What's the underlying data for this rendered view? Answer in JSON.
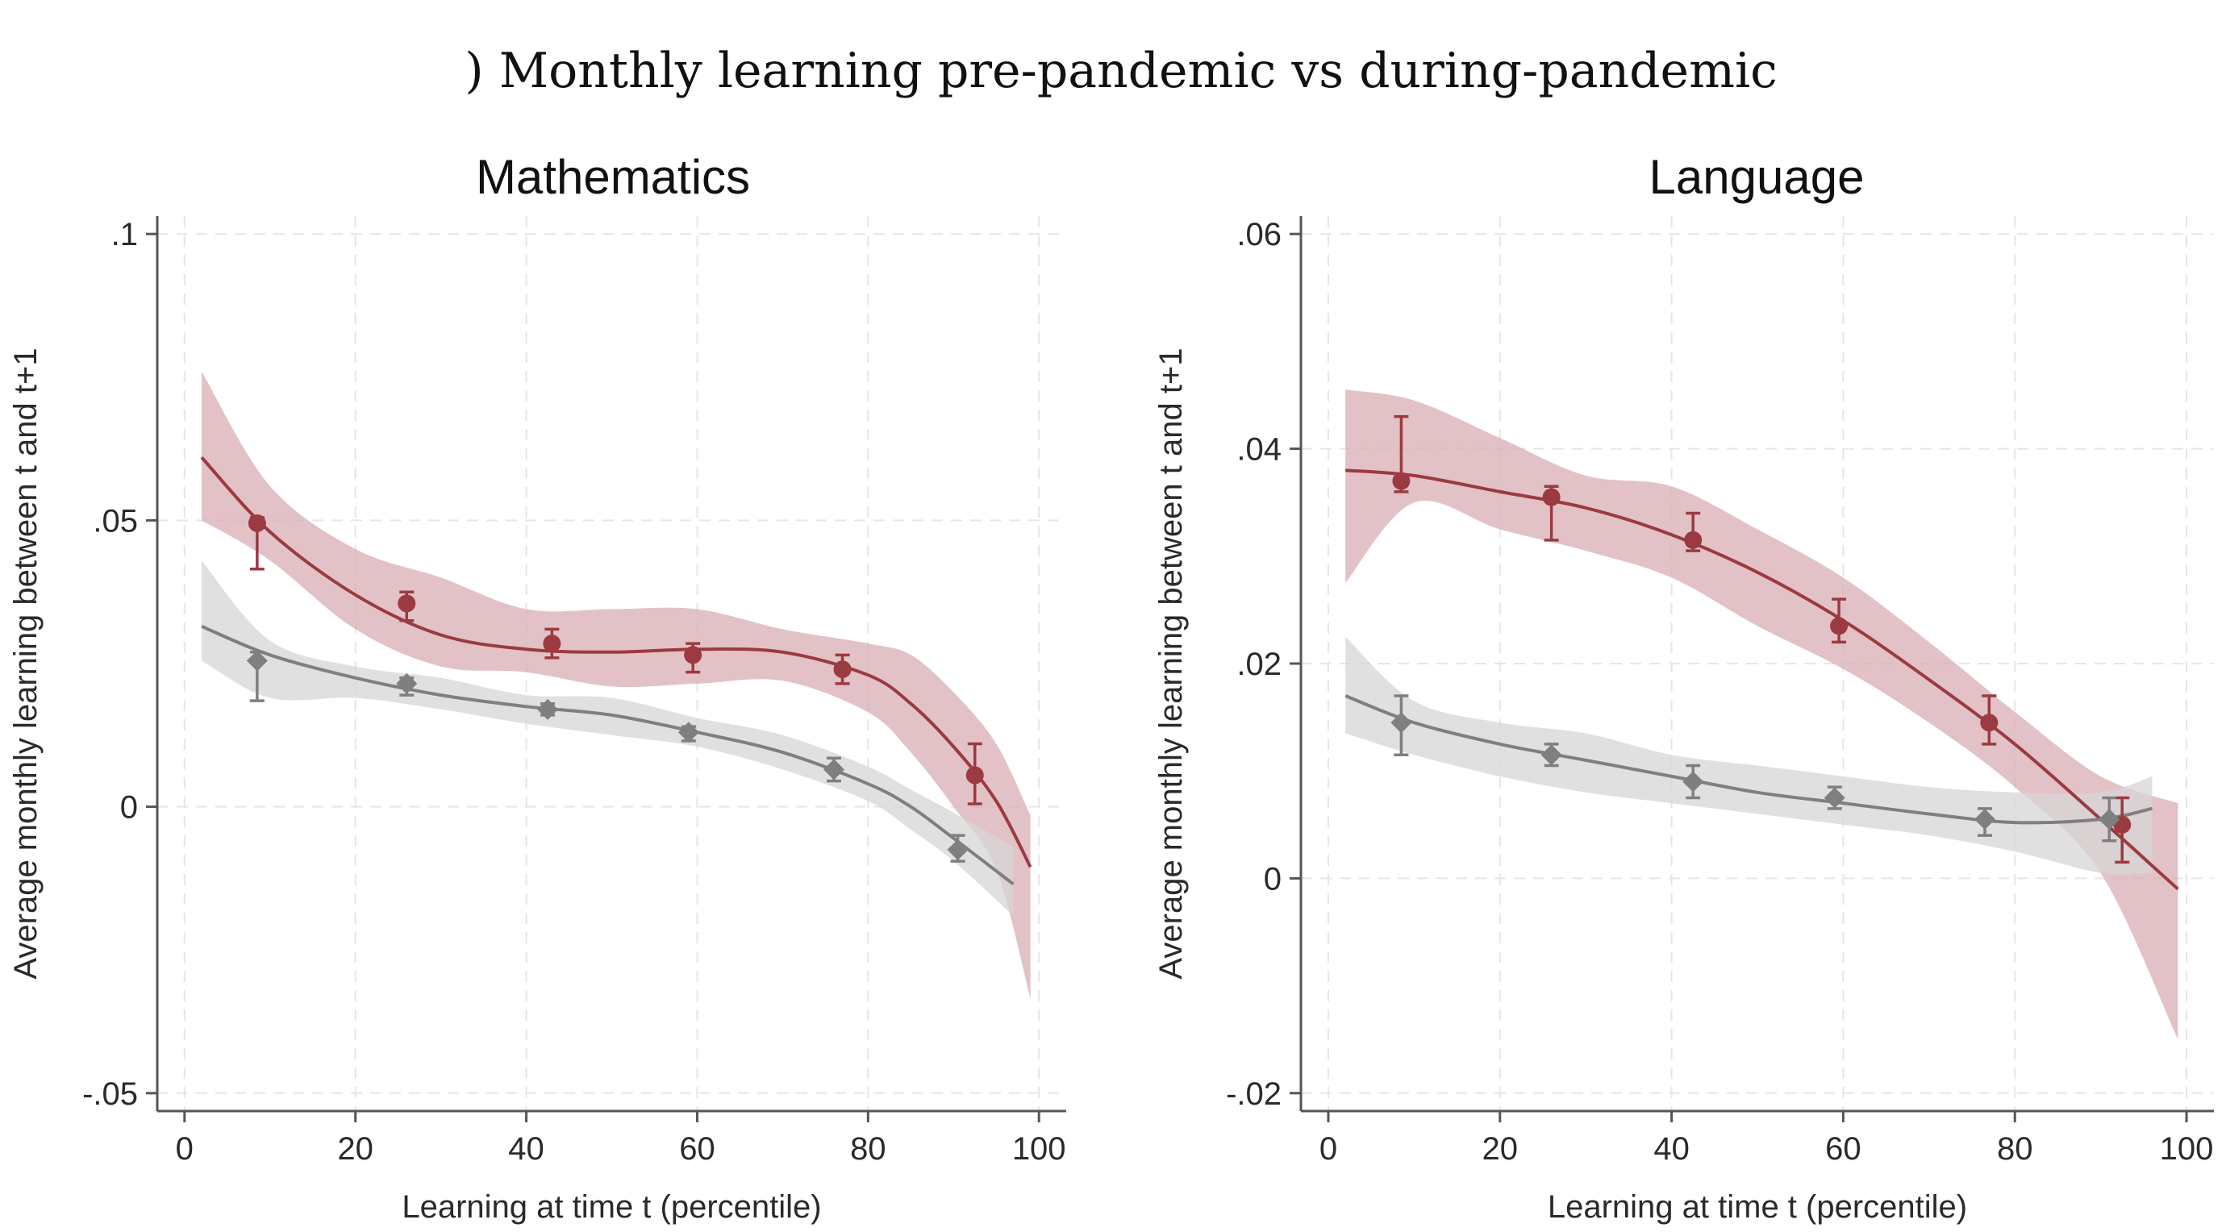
{
  "figure": {
    "suptitle": ") Monthly learning pre-pandemic vs during-pandemic"
  },
  "colors": {
    "pandemic_line": "#9b3a40",
    "pandemic_band": "#d8aeb3",
    "prepandemic_line": "#7f7f7f",
    "prepandemic_band": "#d6d6d6"
  },
  "chart_data": [
    {
      "type": "line",
      "title": "Mathematics",
      "xlabel": "Learning at time t (percentile)",
      "ylabel": "Average monthly learning between t and t+1",
      "xlim": [
        0,
        100
      ],
      "ylim": [
        -0.05,
        0.1
      ],
      "xticks": [
        0,
        20,
        40,
        60,
        80,
        100
      ],
      "xtick_labels": [
        "0",
        "20",
        "40",
        "60",
        "80",
        "100"
      ],
      "yticks": [
        -0.05,
        0,
        0.05,
        0.1
      ],
      "ytick_labels": [
        "-.05",
        "0",
        ".05",
        ".1"
      ],
      "grid": true,
      "series": [
        {
          "name": "During pandemic",
          "color_key": "pandemic_line",
          "band_color_key": "pandemic_band",
          "marker": "circle",
          "fit_x": [
            2,
            10,
            20,
            30,
            40,
            50,
            60,
            70,
            80,
            85,
            90,
            95,
            99
          ],
          "fit_y": [
            0.061,
            0.048,
            0.037,
            0.03,
            0.0275,
            0.027,
            0.0275,
            0.027,
            0.023,
            0.018,
            0.0105,
            0.001,
            -0.0105
          ],
          "band_upper": [
            0.076,
            0.056,
            0.045,
            0.04,
            0.0345,
            0.0345,
            0.0345,
            0.031,
            0.0285,
            0.0265,
            0.02,
            0.011,
            -0.0015
          ],
          "band_lower": [
            0.05,
            0.043,
            0.031,
            0.0245,
            0.0235,
            0.021,
            0.0215,
            0.022,
            0.0165,
            0.0095,
            0.0,
            -0.011,
            -0.0335
          ],
          "points_x": [
            8.5,
            26,
            43,
            59.5,
            77,
            92.5
          ],
          "points_y": [
            0.0495,
            0.0355,
            0.0285,
            0.0265,
            0.024,
            0.0055
          ],
          "err_lo": [
            0.0415,
            0.0325,
            0.026,
            0.0235,
            0.0215,
            0.0005
          ],
          "err_hi": [
            0.0505,
            0.0375,
            0.031,
            0.0285,
            0.0265,
            0.011
          ]
        },
        {
          "name": "Pre-pandemic",
          "color_key": "prepandemic_line",
          "band_color_key": "prepandemic_band",
          "marker": "diamond",
          "fit_x": [
            2,
            10,
            20,
            30,
            40,
            50,
            60,
            70,
            80,
            85,
            90,
            97
          ],
          "fit_y": [
            0.0315,
            0.0265,
            0.0225,
            0.0195,
            0.0175,
            0.016,
            0.013,
            0.0095,
            0.004,
            0.0,
            -0.0055,
            -0.0135
          ],
          "band_upper": [
            0.043,
            0.029,
            0.0245,
            0.0225,
            0.0195,
            0.019,
            0.0155,
            0.0125,
            0.007,
            0.003,
            -0.001,
            -0.007
          ],
          "band_lower": [
            0.0255,
            0.019,
            0.019,
            0.017,
            0.0145,
            0.0125,
            0.0105,
            0.0065,
            0.001,
            -0.004,
            -0.0095,
            -0.019
          ],
          "points_x": [
            8.5,
            26,
            42.5,
            59,
            76,
            90.5
          ],
          "points_y": [
            0.0255,
            0.0215,
            0.017,
            0.013,
            0.0065,
            -0.0075
          ],
          "err_lo": [
            0.0185,
            0.0195,
            0.016,
            0.0115,
            0.0045,
            -0.0095
          ],
          "err_hi": [
            0.027,
            0.0225,
            0.018,
            0.014,
            0.0085,
            -0.005
          ]
        }
      ]
    },
    {
      "type": "line",
      "title": "Language",
      "xlabel": "Learning at time t (percentile)",
      "ylabel": "Average monthly learning between t and t+1",
      "xlim": [
        0,
        100
      ],
      "ylim": [
        -0.02,
        0.06
      ],
      "xticks": [
        0,
        20,
        40,
        60,
        80,
        100
      ],
      "xtick_labels": [
        "0",
        "20",
        "40",
        "60",
        "80",
        "100"
      ],
      "yticks": [
        -0.02,
        0,
        0.02,
        0.04,
        0.06
      ],
      "ytick_labels": [
        "-.02",
        "0",
        ".02",
        ".04",
        ".06"
      ],
      "grid": true,
      "series": [
        {
          "name": "During pandemic",
          "color_key": "pandemic_line",
          "band_color_key": "pandemic_band",
          "marker": "circle",
          "fit_x": [
            2,
            10,
            20,
            30,
            40,
            50,
            60,
            70,
            80,
            90,
            99
          ],
          "fit_y": [
            0.038,
            0.0375,
            0.036,
            0.0345,
            0.032,
            0.0285,
            0.024,
            0.0185,
            0.0125,
            0.0055,
            -0.001
          ],
          "band_upper": [
            0.0455,
            0.0445,
            0.041,
            0.0375,
            0.0365,
            0.0325,
            0.028,
            0.022,
            0.0155,
            0.0095,
            0.007
          ],
          "band_lower": [
            0.0275,
            0.035,
            0.0325,
            0.0305,
            0.028,
            0.0235,
            0.0195,
            0.0145,
            0.0085,
            0.0005,
            -0.015
          ],
          "points_x": [
            8.5,
            26,
            42.5,
            59.5,
            77,
            92.5
          ],
          "points_y": [
            0.037,
            0.0355,
            0.0315,
            0.0235,
            0.0145,
            0.005
          ],
          "err_lo": [
            0.036,
            0.0315,
            0.0305,
            0.022,
            0.0125,
            0.0015
          ],
          "err_hi": [
            0.043,
            0.0365,
            0.034,
            0.026,
            0.017,
            0.0075
          ]
        },
        {
          "name": "Pre-pandemic",
          "color_key": "prepandemic_line",
          "band_color_key": "prepandemic_band",
          "marker": "diamond",
          "fit_x": [
            2,
            10,
            20,
            30,
            40,
            50,
            60,
            70,
            80,
            90,
            96
          ],
          "fit_y": [
            0.017,
            0.0145,
            0.0125,
            0.011,
            0.0095,
            0.008,
            0.007,
            0.006,
            0.0052,
            0.0055,
            0.0065
          ],
          "band_upper": [
            0.0225,
            0.0165,
            0.0145,
            0.0135,
            0.0115,
            0.0105,
            0.0095,
            0.0085,
            0.008,
            0.008,
            0.0095
          ],
          "band_lower": [
            0.0135,
            0.0115,
            0.0095,
            0.008,
            0.007,
            0.006,
            0.005,
            0.004,
            0.0025,
            0.0005,
            0.0005
          ],
          "points_x": [
            8.5,
            26,
            42.5,
            59,
            76.5,
            91
          ],
          "points_y": [
            0.0145,
            0.0115,
            0.009,
            0.0075,
            0.0055,
            0.0055
          ],
          "err_lo": [
            0.0115,
            0.0105,
            0.0075,
            0.0065,
            0.004,
            0.0035
          ],
          "err_hi": [
            0.017,
            0.0125,
            0.0105,
            0.0085,
            0.0065,
            0.0075
          ]
        }
      ]
    }
  ]
}
